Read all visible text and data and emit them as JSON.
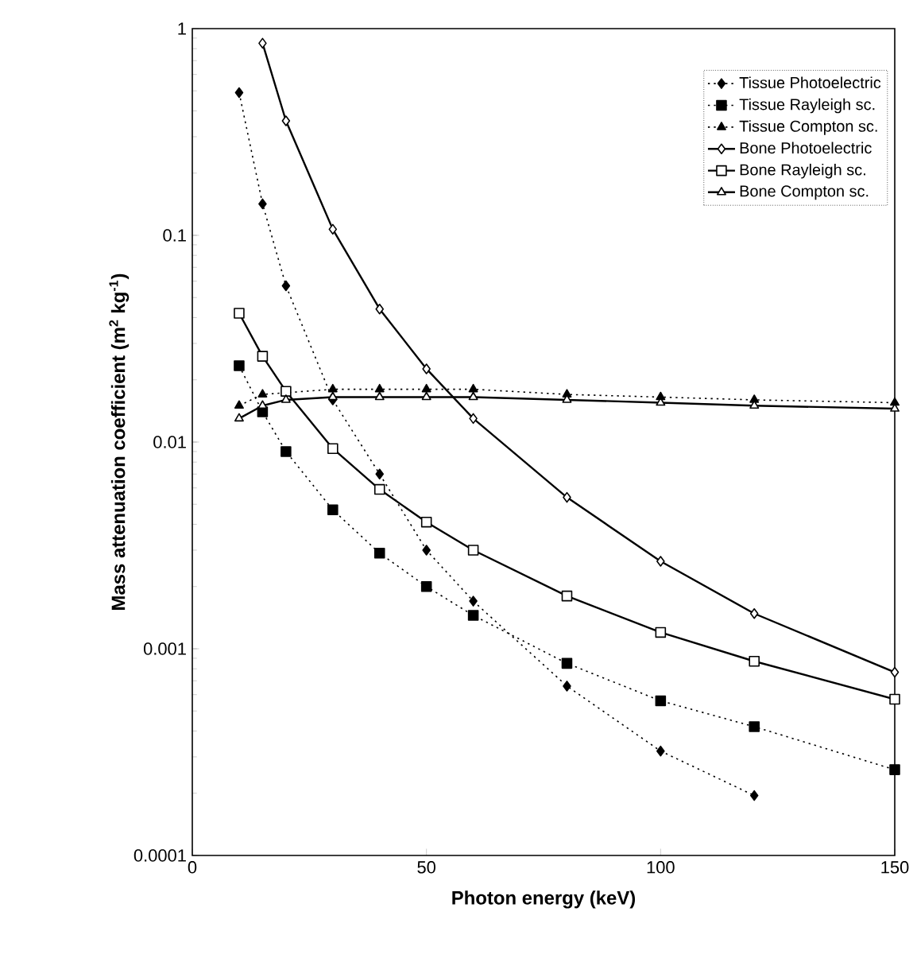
{
  "chart_data": {
    "type": "line",
    "xlabel": "Photon energy (keV)",
    "ylabel": "Mass attenuation coefficient (m$^{2}$ kg$^{-1}$)",
    "x": [
      10,
      15,
      20,
      30,
      40,
      50,
      60,
      80,
      100,
      120,
      150
    ],
    "series": [
      {
        "name": "Tissue Photoelectric",
        "color": "#000000",
        "marker": "diamond",
        "line_style": "dotted",
        "values": [
          0.49,
          0.142,
          0.057,
          0.016,
          0.007,
          0.003,
          0.0017,
          0.00066,
          0.00032,
          0.000195,
          null
        ]
      },
      {
        "name": "Tissue Rayleigh sc.",
        "color": "#000000",
        "marker": "square",
        "line_style": "dotted",
        "values": [
          0.0234,
          0.014,
          0.009,
          0.0047,
          0.0029,
          0.002,
          0.00145,
          0.00085,
          0.00056,
          0.00042,
          0.00026
        ]
      },
      {
        "name": "Tissue Compton sc.",
        "color": "#000000",
        "marker": "triangle",
        "line_style": "dotted",
        "values": [
          0.015,
          0.017,
          null,
          0.018,
          0.018,
          0.018,
          0.018,
          0.017,
          0.0165,
          0.016,
          0.0155
        ]
      },
      {
        "name": "Bone Photoelectric",
        "color": "#000000",
        "marker": "diamond",
        "line_style": "solid",
        "values": [
          null,
          0.85,
          0.358,
          0.107,
          0.044,
          0.0226,
          0.013,
          0.0054,
          0.00265,
          0.00148,
          0.00077
        ]
      },
      {
        "name": "Bone Rayleigh sc.",
        "color": "#000000",
        "marker": "square",
        "line_style": "solid",
        "values": [
          0.042,
          0.026,
          0.0176,
          0.0093,
          0.0059,
          0.0041,
          0.003,
          0.0018,
          0.0012,
          0.00087,
          0.00057
        ]
      },
      {
        "name": "Bone Compton sc.",
        "color": "#000000",
        "marker": "triangle",
        "line_style": "solid",
        "values": [
          0.013,
          0.015,
          0.016,
          0.0165,
          0.0165,
          0.0165,
          0.0165,
          0.016,
          0.0155,
          0.015,
          0.0145
        ]
      }
    ],
    "log": "y",
    "grid": false,
    "legend": "top right",
    "xlim": [
      0,
      150
    ],
    "xticks": [
      0,
      50,
      100,
      150
    ],
    "ylim": [
      0.0001,
      1
    ],
    "yticks": [
      {
        "value": 0.0001,
        "label": "0.0001"
      },
      {
        "value": 0.001,
        "label": "0.001"
      },
      {
        "value": 0.01,
        "label": "0.01"
      },
      {
        "value": 0.1,
        "label": "0.1"
      },
      {
        "value": 1,
        "label": "1"
      }
    ]
  }
}
